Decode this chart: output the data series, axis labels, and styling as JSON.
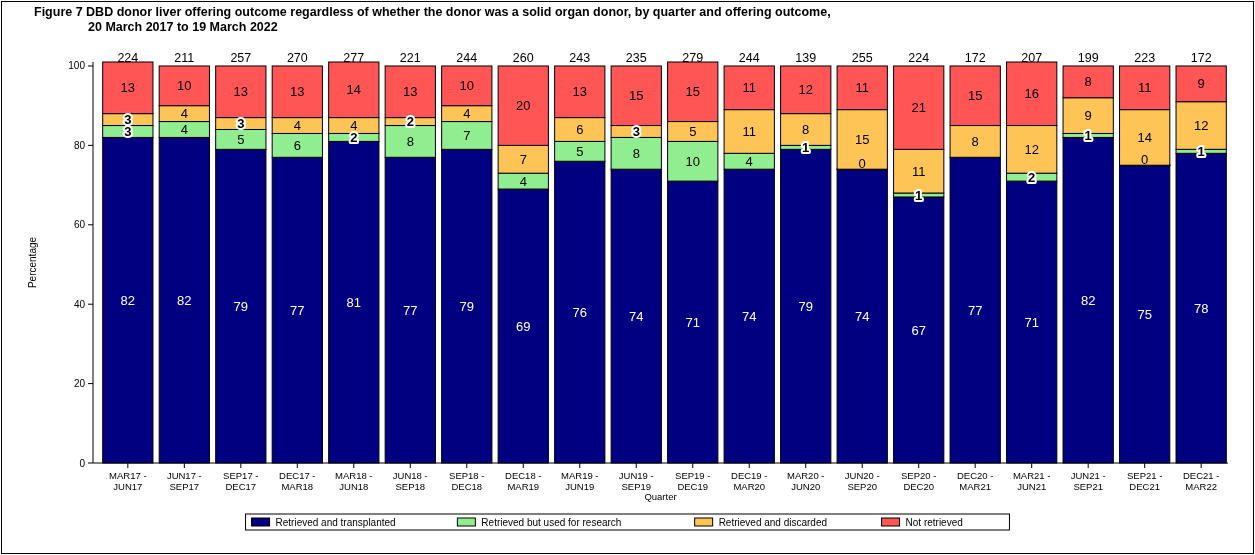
{
  "chart_data": {
    "type": "bar",
    "stacked": true,
    "title": "Figure 7 DBD donor liver offering outcome regardless of whether the donor was a solid organ donor, by quarter and offering outcome,",
    "subtitle": "20 March 2017 to 19 March 2022",
    "xlabel": "Quarter",
    "ylabel": "Percentage",
    "categories": [
      "MAR17 - JUN17",
      "JUN17 - SEP17",
      "SEP17 - DEC17",
      "DEC17 - MAR18",
      "MAR18 - JUN18",
      "JUN18 - SEP18",
      "SEP18 - DEC18",
      "DEC18 - MAR19",
      "MAR19 - JUN19",
      "JUN19 - SEP19",
      "SEP19 - DEC19",
      "DEC19 - MAR20",
      "MAR20 - JUN20",
      "JUN20 - SEP20",
      "SEP20 - DEC20",
      "DEC20 - MAR21",
      "MAR21 - JUN21",
      "JUN21 - SEP21",
      "SEP21 - DEC21",
      "DEC21 - MAR22"
    ],
    "series": [
      {
        "name": "Retrieved and transplanted",
        "color": "#000080",
        "values": [
          82,
          82,
          79,
          77,
          81,
          77,
          79,
          69,
          76,
          74,
          71,
          74,
          79,
          74,
          67,
          77,
          71,
          82,
          75,
          78
        ]
      },
      {
        "name": "Retrieved but used for research",
        "color": "#90ee90",
        "values": [
          3,
          4,
          5,
          6,
          2,
          8,
          7,
          4,
          5,
          8,
          10,
          4,
          1,
          0,
          1,
          null,
          2,
          1,
          0,
          1
        ]
      },
      {
        "name": "Retrieved and discarded",
        "color": "#ffc456",
        "values": [
          3,
          4,
          3,
          4,
          4,
          2,
          4,
          7,
          6,
          3,
          5,
          11,
          8,
          15,
          11,
          8,
          12,
          9,
          14,
          12
        ]
      },
      {
        "name": "Not retrieved",
        "color": "#ff5555",
        "values": [
          13,
          10,
          13,
          13,
          14,
          13,
          10,
          20,
          13,
          15,
          15,
          11,
          12,
          11,
          21,
          15,
          16,
          8,
          11,
          9
        ]
      }
    ],
    "annotations": [
      {
        "text": "224",
        "x": "MAR17 - JUN17",
        "y": 100
      },
      {
        "text": "211",
        "x": "JUN17 - SEP17",
        "y": 100
      },
      {
        "text": "257",
        "x": "SEP17 - DEC17",
        "y": 100
      },
      {
        "text": "270",
        "x": "DEC17 - MAR18",
        "y": 100
      },
      {
        "text": "277",
        "x": "MAR18 - JUN18",
        "y": 100
      },
      {
        "text": "221",
        "x": "JUN18 - SEP18",
        "y": 100
      },
      {
        "text": "244",
        "x": "SEP18 - DEC18",
        "y": 100
      },
      {
        "text": "260",
        "x": "DEC18 - MAR19",
        "y": 100
      },
      {
        "text": "243",
        "x": "MAR19 - JUN19",
        "y": 100
      },
      {
        "text": "235",
        "x": "JUN19 - SEP19",
        "y": 100
      },
      {
        "text": "279",
        "x": "SEP19 - DEC19",
        "y": 100
      },
      {
        "text": "244",
        "x": "DEC19 - MAR20",
        "y": 100
      },
      {
        "text": "139",
        "x": "MAR20 - JUN20",
        "y": 100
      },
      {
        "text": "255",
        "x": "JUN20 - SEP20",
        "y": 100
      },
      {
        "text": "224",
        "x": "SEP20 - DEC20",
        "y": 100
      },
      {
        "text": "172",
        "x": "DEC20 - MAR21",
        "y": 100
      },
      {
        "text": "207",
        "x": "MAR21 - JUN21",
        "y": 100
      },
      {
        "text": "199",
        "x": "JUN21 - SEP21",
        "y": 100
      },
      {
        "text": "223",
        "x": "SEP21 - DEC21",
        "y": 100
      },
      {
        "text": "172",
        "x": "DEC21 - MAR22",
        "y": 100
      }
    ],
    "data_labels": true,
    "ylim": [
      0,
      101
    ],
    "yticks": [
      0,
      20,
      40,
      60,
      80,
      100
    ],
    "grid": false,
    "legend": "bottom"
  }
}
